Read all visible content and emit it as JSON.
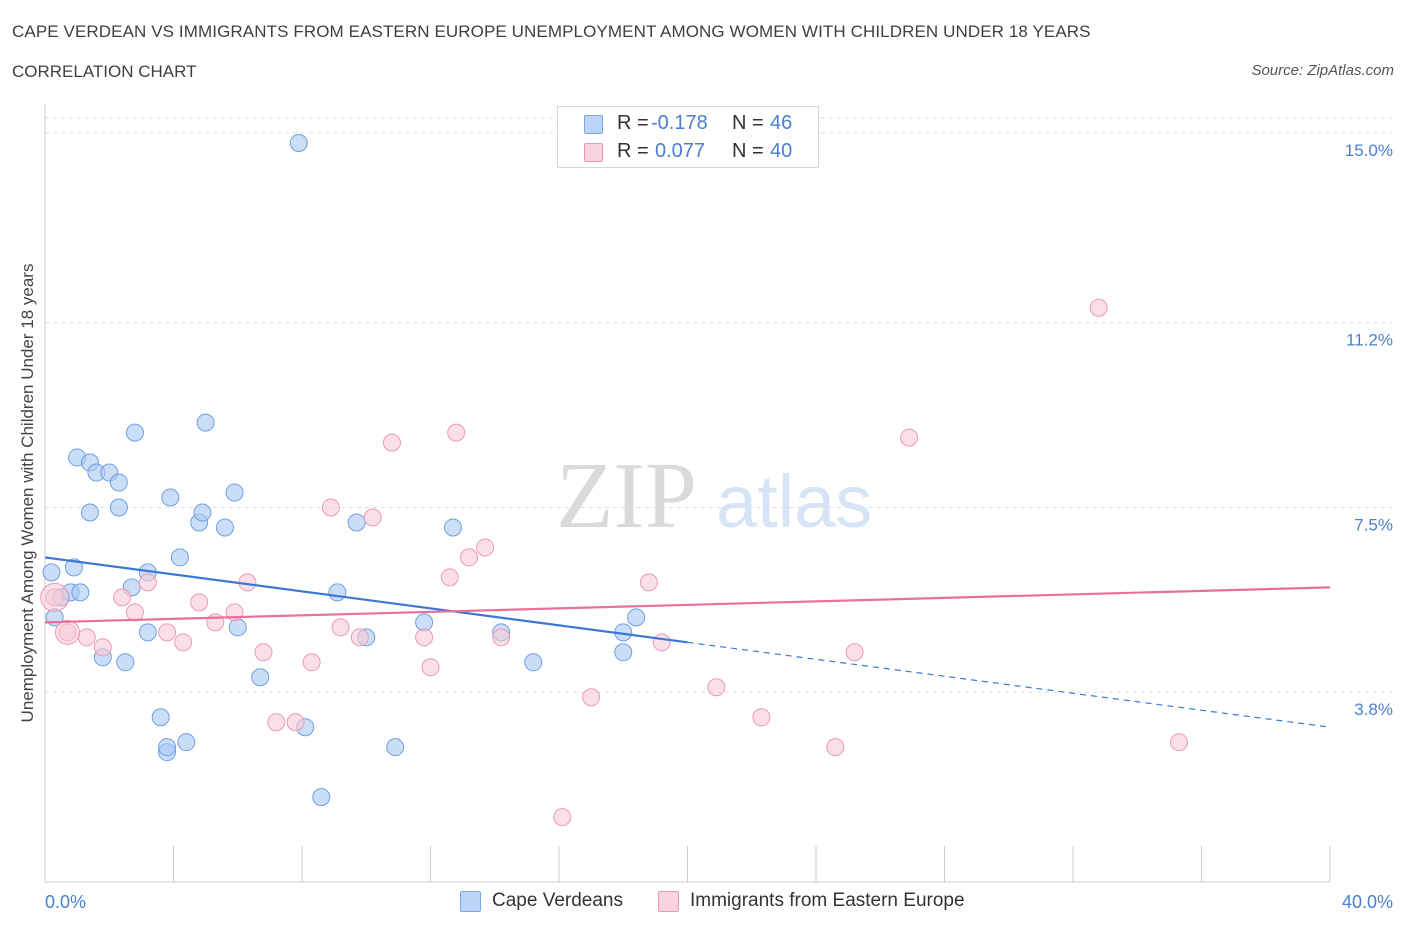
{
  "title": "CAPE VERDEAN VS IMMIGRANTS FROM EASTERN EUROPE UNEMPLOYMENT AMONG WOMEN WITH CHILDREN UNDER 18 YEARS",
  "subtitle": "CORRELATION CHART",
  "source": "Source: ZipAtlas.com",
  "watermark": {
    "zip": "ZIP",
    "atlas": "atlas"
  },
  "stats": [
    {
      "r_label": "R =",
      "r_value": "-0.178",
      "n_label": "N =",
      "n_value": "46",
      "color": "#a9c8f2",
      "border": "#7aa6e3"
    },
    {
      "r_label": "R =",
      "r_value": "0.077",
      "n_label": "N =",
      "n_value": "40",
      "color": "#f7c9d6",
      "border": "#eb9ab3"
    }
  ],
  "colors": {
    "blue": "#4a7fd0",
    "blue_line": "#3a78d4",
    "pink_line": "#e8709a",
    "tick_label": "#4a7fd0"
  },
  "chart_data": {
    "type": "scatter",
    "title": "CAPE VERDEAN VS IMMIGRANTS FROM EASTERN EUROPE UNEMPLOYMENT AMONG WOMEN WITH CHILDREN UNDER 18 YEARS",
    "xlabel": "",
    "ylabel": "Unemployment Among Women with Children Under 18 years",
    "xlim": [
      0,
      40
    ],
    "ylim": [
      0,
      15.3
    ],
    "x_tick_labels": [
      "0.0%",
      "40.0%"
    ],
    "y_ticks": [
      3.8,
      7.5,
      11.2,
      15.0
    ],
    "y_tick_labels": [
      "3.8%",
      "7.5%",
      "11.2%",
      "15.0%"
    ],
    "grid": "horizontal dashed",
    "legend_position": "bottom-center",
    "series": [
      {
        "name": "Cape Verdeans",
        "color": "#a9c8f2",
        "stroke": "#6f9fe0",
        "trend": {
          "x0": 0,
          "y0": 6.5,
          "x1": 20,
          "y1": 4.8,
          "dashed_to_x": 40,
          "dashed_to_y": 3.1
        },
        "points": [
          [
            0.2,
            6.2
          ],
          [
            0.3,
            5.3
          ],
          [
            0.5,
            5.7
          ],
          [
            0.8,
            5.8
          ],
          [
            0.9,
            6.3
          ],
          [
            1.1,
            5.8
          ],
          [
            1.0,
            8.5
          ],
          [
            1.4,
            8.4
          ],
          [
            1.6,
            8.2
          ],
          [
            2.0,
            8.2
          ],
          [
            2.3,
            8.0
          ],
          [
            1.4,
            7.4
          ],
          [
            2.3,
            7.5
          ],
          [
            1.8,
            4.5
          ],
          [
            2.5,
            4.4
          ],
          [
            2.7,
            5.9
          ],
          [
            2.8,
            9.0
          ],
          [
            3.2,
            6.2
          ],
          [
            3.2,
            5.0
          ],
          [
            3.6,
            3.3
          ],
          [
            3.8,
            2.6
          ],
          [
            3.8,
            2.7
          ],
          [
            4.4,
            2.8
          ],
          [
            3.9,
            7.7
          ],
          [
            4.2,
            6.5
          ],
          [
            4.8,
            7.2
          ],
          [
            4.9,
            7.4
          ],
          [
            5.0,
            9.2
          ],
          [
            5.6,
            7.1
          ],
          [
            5.9,
            7.8
          ],
          [
            6.0,
            5.1
          ],
          [
            6.7,
            4.1
          ],
          [
            7.9,
            14.8
          ],
          [
            8.1,
            3.1
          ],
          [
            8.6,
            1.7
          ],
          [
            9.1,
            5.8
          ],
          [
            9.7,
            7.2
          ],
          [
            10.0,
            4.9
          ],
          [
            10.9,
            2.7
          ],
          [
            11.8,
            5.2
          ],
          [
            12.7,
            7.1
          ],
          [
            14.2,
            5.0
          ],
          [
            15.2,
            4.4
          ],
          [
            18.0,
            4.6
          ],
          [
            18.0,
            5.0
          ],
          [
            18.4,
            5.3
          ]
        ]
      },
      {
        "name": "Immigrants from Eastern Europe",
        "color": "#f7c9d6",
        "stroke": "#eb9ab3",
        "trend": {
          "x0": 0,
          "y0": 5.2,
          "x1": 40,
          "y1": 5.9
        },
        "points": [
          [
            0.3,
            5.7
          ],
          [
            0.7,
            5.0
          ],
          [
            1.3,
            4.9
          ],
          [
            1.8,
            4.7
          ],
          [
            2.4,
            5.7
          ],
          [
            2.8,
            5.4
          ],
          [
            3.2,
            6.0
          ],
          [
            3.8,
            5.0
          ],
          [
            4.3,
            4.8
          ],
          [
            4.8,
            5.6
          ],
          [
            5.3,
            5.2
          ],
          [
            5.9,
            5.4
          ],
          [
            6.3,
            6.0
          ],
          [
            6.8,
            4.6
          ],
          [
            7.2,
            3.2
          ],
          [
            7.8,
            3.2
          ],
          [
            8.3,
            4.4
          ],
          [
            8.9,
            7.5
          ],
          [
            9.2,
            5.1
          ],
          [
            9.8,
            4.9
          ],
          [
            10.2,
            7.3
          ],
          [
            10.8,
            8.8
          ],
          [
            11.8,
            4.9
          ],
          [
            12.0,
            4.3
          ],
          [
            12.6,
            6.1
          ],
          [
            12.8,
            9.0
          ],
          [
            13.2,
            6.5
          ],
          [
            13.7,
            6.7
          ],
          [
            14.2,
            4.9
          ],
          [
            16.1,
            1.3
          ],
          [
            17.0,
            3.7
          ],
          [
            18.8,
            6.0
          ],
          [
            19.2,
            4.8
          ],
          [
            20.9,
            3.9
          ],
          [
            22.3,
            3.3
          ],
          [
            24.6,
            2.7
          ],
          [
            25.2,
            4.6
          ],
          [
            26.9,
            8.9
          ],
          [
            32.8,
            11.5
          ],
          [
            35.3,
            2.8
          ]
        ]
      }
    ]
  }
}
